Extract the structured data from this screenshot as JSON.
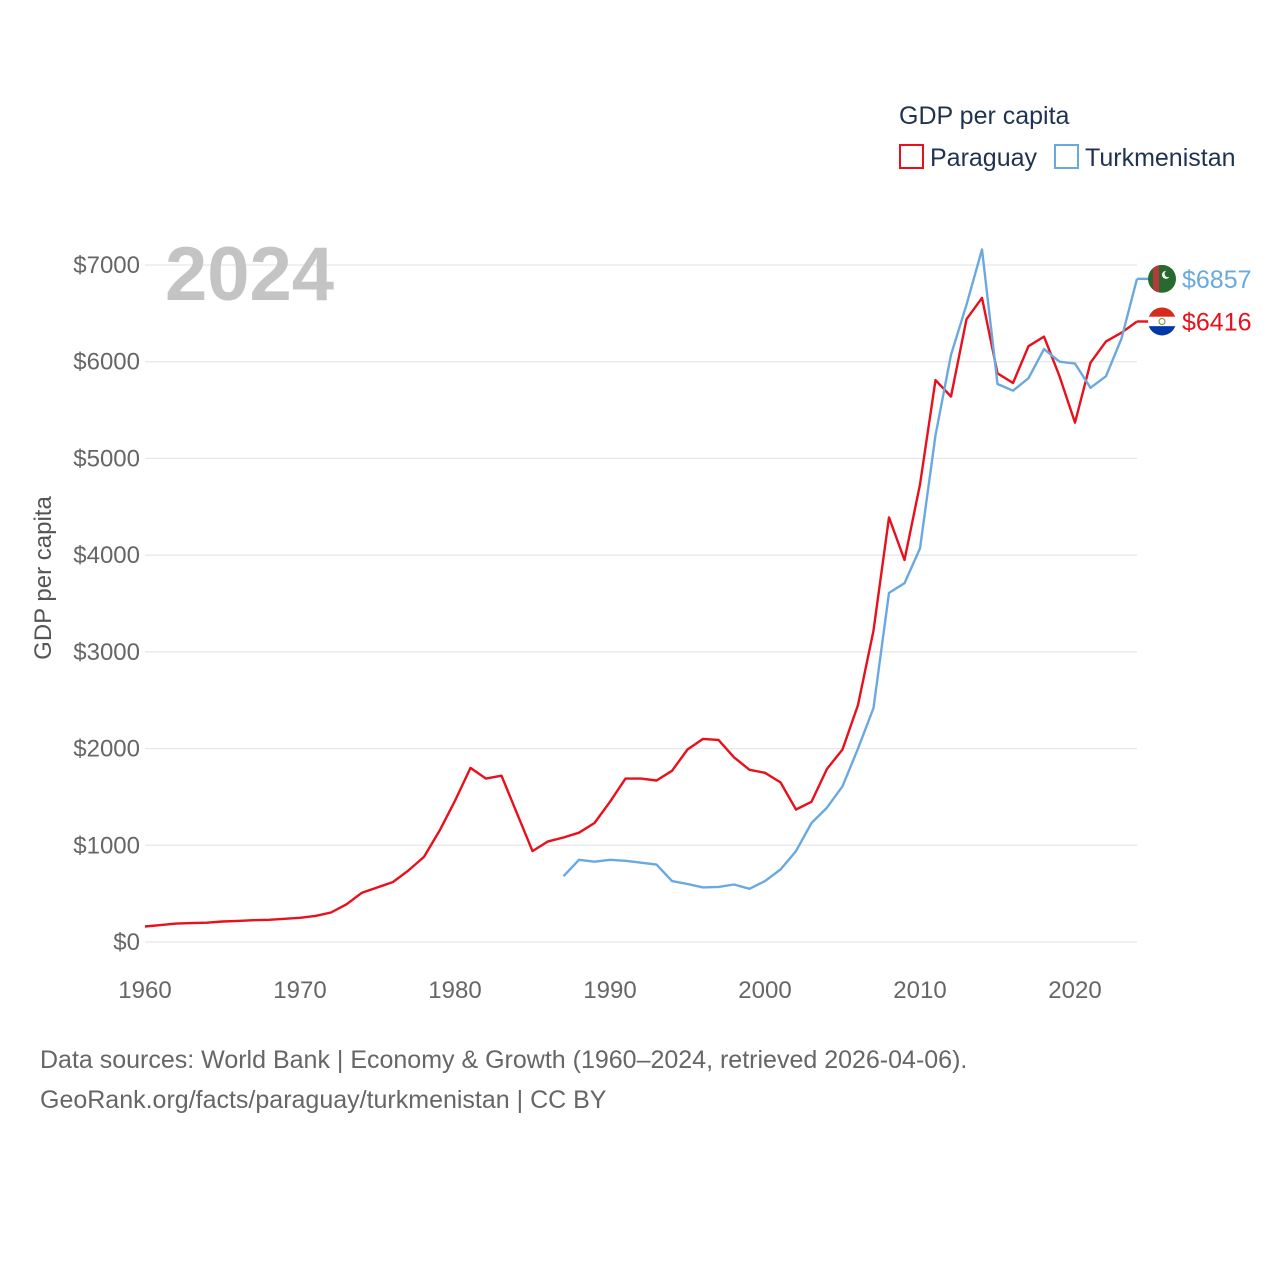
{
  "chart_data": {
    "type": "line",
    "ylabel": "GDP per capita",
    "xlabel": "",
    "year_overlay": "2024",
    "legend_title": "GDP per capita",
    "legend_position": "top-right",
    "xlim": [
      1960,
      2024
    ],
    "ylim": [
      0,
      7000
    ],
    "grid": true,
    "y_ticks": [
      {
        "value": 0,
        "label": "$0"
      },
      {
        "value": 1000,
        "label": "$1000"
      },
      {
        "value": 2000,
        "label": "$2000"
      },
      {
        "value": 3000,
        "label": "$3000"
      },
      {
        "value": 4000,
        "label": "$4000"
      },
      {
        "value": 5000,
        "label": "$5000"
      },
      {
        "value": 6000,
        "label": "$6000"
      },
      {
        "value": 7000,
        "label": "$7000"
      }
    ],
    "x_ticks": [
      {
        "value": 1960,
        "label": "1960"
      },
      {
        "value": 1970,
        "label": "1970"
      },
      {
        "value": 1980,
        "label": "1980"
      },
      {
        "value": 1990,
        "label": "1990"
      },
      {
        "value": 2000,
        "label": "2000"
      },
      {
        "value": 2010,
        "label": "2010"
      },
      {
        "value": 2020,
        "label": "2020"
      }
    ],
    "series": [
      {
        "name": "Paraguay",
        "color": "#e8101a",
        "end_label": "$6416",
        "flag": "paraguay-flag",
        "points": [
          [
            1960,
            160
          ],
          [
            1961,
            175
          ],
          [
            1962,
            190
          ],
          [
            1963,
            195
          ],
          [
            1964,
            200
          ],
          [
            1965,
            212
          ],
          [
            1966,
            218
          ],
          [
            1967,
            225
          ],
          [
            1968,
            230
          ],
          [
            1969,
            240
          ],
          [
            1970,
            250
          ],
          [
            1971,
            270
          ],
          [
            1972,
            305
          ],
          [
            1973,
            390
          ],
          [
            1974,
            510
          ],
          [
            1975,
            565
          ],
          [
            1976,
            620
          ],
          [
            1977,
            740
          ],
          [
            1978,
            880
          ],
          [
            1979,
            1150
          ],
          [
            1980,
            1460
          ],
          [
            1981,
            1800
          ],
          [
            1982,
            1690
          ],
          [
            1983,
            1720
          ],
          [
            1984,
            1330
          ],
          [
            1985,
            940
          ],
          [
            1986,
            1040
          ],
          [
            1987,
            1080
          ],
          [
            1988,
            1130
          ],
          [
            1989,
            1230
          ],
          [
            1990,
            1450
          ],
          [
            1991,
            1690
          ],
          [
            1992,
            1690
          ],
          [
            1993,
            1670
          ],
          [
            1994,
            1770
          ],
          [
            1995,
            1990
          ],
          [
            1996,
            2100
          ],
          [
            1997,
            2090
          ],
          [
            1998,
            1910
          ],
          [
            1999,
            1780
          ],
          [
            2000,
            1750
          ],
          [
            2001,
            1650
          ],
          [
            2002,
            1370
          ],
          [
            2003,
            1450
          ],
          [
            2004,
            1790
          ],
          [
            2005,
            1990
          ],
          [
            2006,
            2450
          ],
          [
            2007,
            3220
          ],
          [
            2008,
            4390
          ],
          [
            2009,
            3950
          ],
          [
            2010,
            4730
          ],
          [
            2011,
            5810
          ],
          [
            2012,
            5640
          ],
          [
            2013,
            6440
          ],
          [
            2014,
            6660
          ],
          [
            2015,
            5880
          ],
          [
            2016,
            5780
          ],
          [
            2017,
            6160
          ],
          [
            2018,
            6260
          ],
          [
            2019,
            5850
          ],
          [
            2020,
            5370
          ],
          [
            2021,
            5990
          ],
          [
            2022,
            6210
          ],
          [
            2023,
            6300
          ],
          [
            2024,
            6416
          ]
        ]
      },
      {
        "name": "Turkmenistan",
        "color": "#6aa9e0",
        "end_label": "$6857",
        "flag": "turkmenistan-flag",
        "points": [
          [
            1987,
            680
          ],
          [
            1988,
            850
          ],
          [
            1989,
            830
          ],
          [
            1990,
            850
          ],
          [
            1991,
            840
          ],
          [
            1992,
            820
          ],
          [
            1993,
            800
          ],
          [
            1994,
            630
          ],
          [
            1995,
            600
          ],
          [
            1996,
            565
          ],
          [
            1997,
            570
          ],
          [
            1998,
            595
          ],
          [
            1999,
            550
          ],
          [
            2000,
            630
          ],
          [
            2001,
            750
          ],
          [
            2002,
            940
          ],
          [
            2003,
            1230
          ],
          [
            2004,
            1390
          ],
          [
            2005,
            1610
          ],
          [
            2006,
            2000
          ],
          [
            2007,
            2420
          ],
          [
            2008,
            3610
          ],
          [
            2009,
            3710
          ],
          [
            2010,
            4070
          ],
          [
            2011,
            5240
          ],
          [
            2012,
            6070
          ],
          [
            2013,
            6590
          ],
          [
            2014,
            7160
          ],
          [
            2015,
            5770
          ],
          [
            2016,
            5700
          ],
          [
            2017,
            5830
          ],
          [
            2018,
            6130
          ],
          [
            2019,
            6000
          ],
          [
            2020,
            5980
          ],
          [
            2021,
            5730
          ],
          [
            2022,
            5850
          ],
          [
            2023,
            6240
          ],
          [
            2024,
            6857
          ]
        ]
      }
    ]
  },
  "source": {
    "line1": "Data sources: World Bank | Economy & Growth (1960–2024, retrieved 2026-04-06).",
    "line2": "GeoRank.org/facts/paraguay/turkmenistan | CC BY"
  }
}
